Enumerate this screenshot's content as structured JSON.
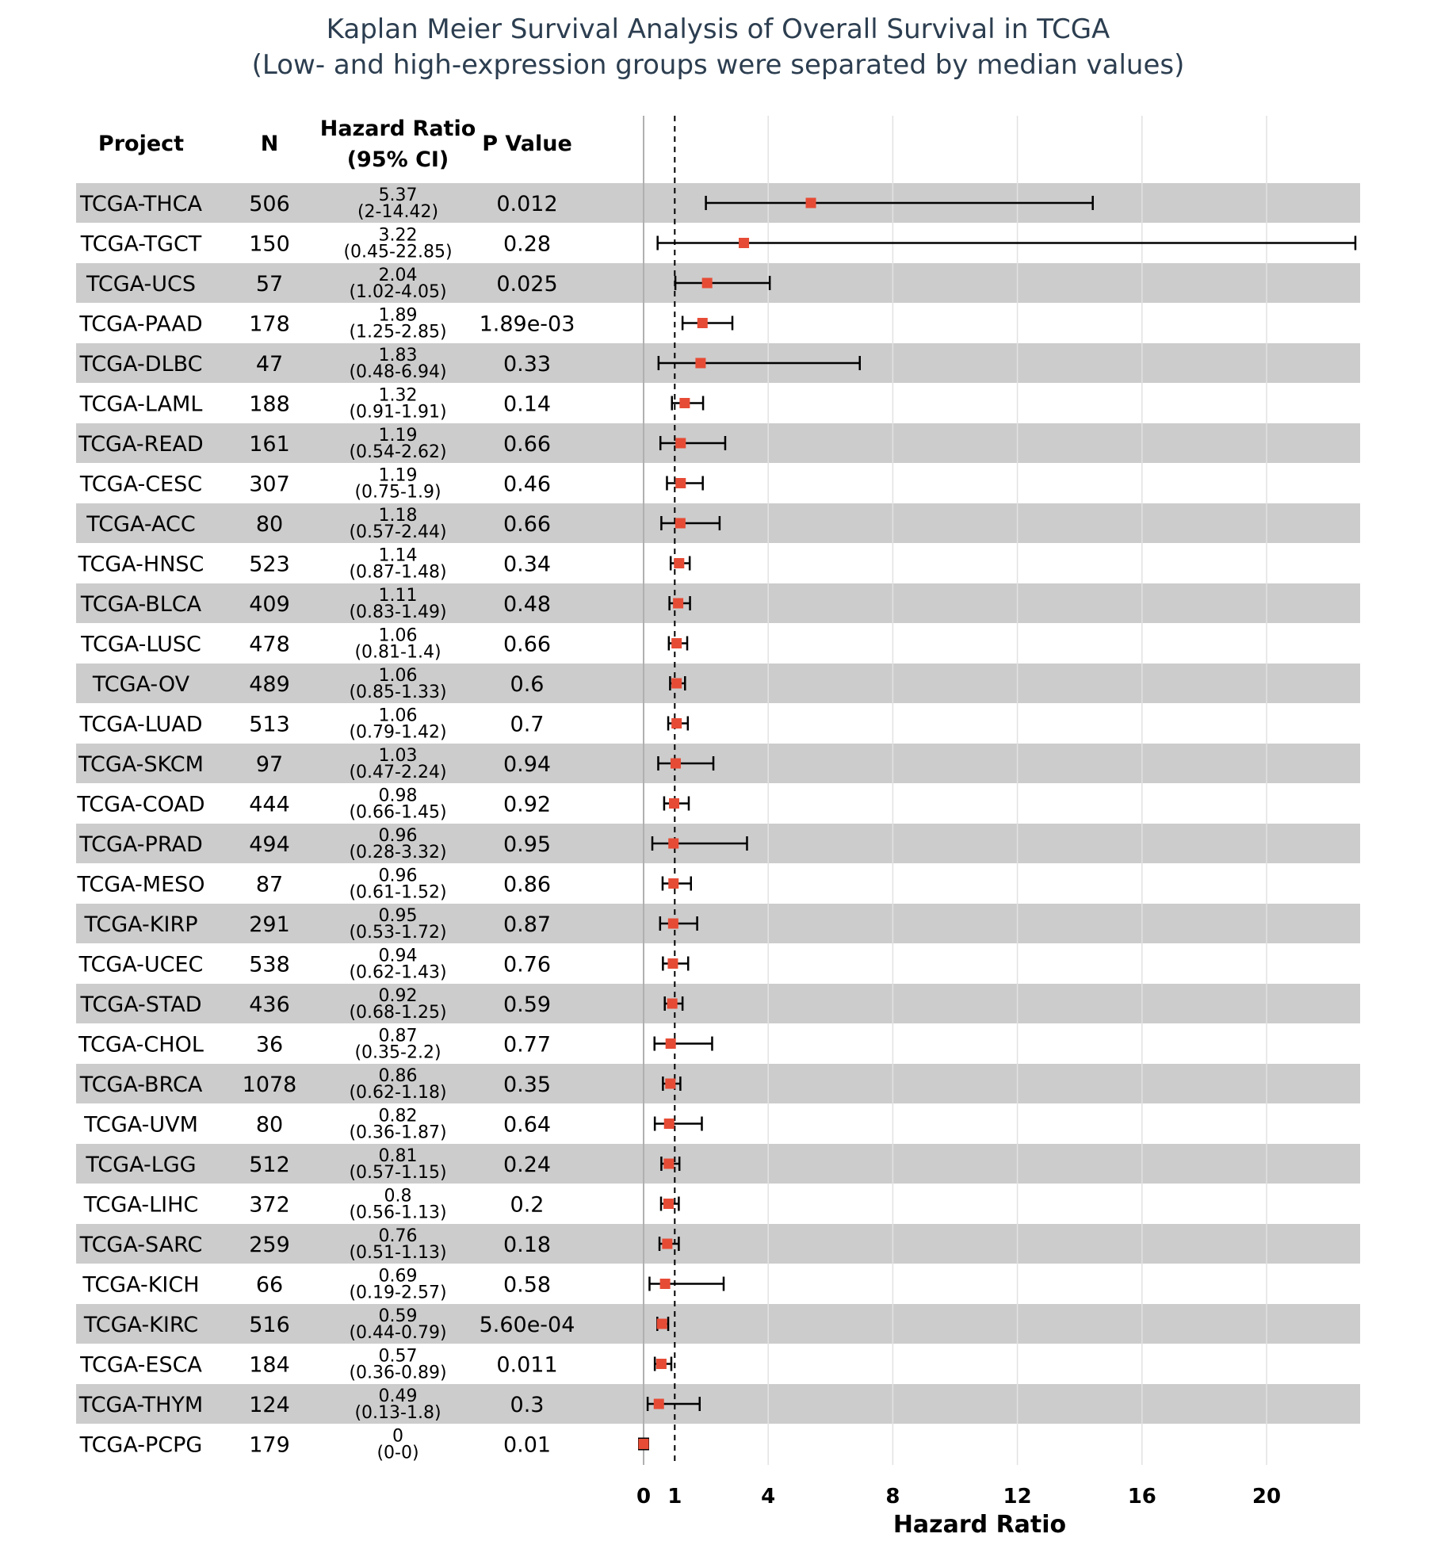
{
  "title_line1": "Kaplan Meier Survival Analysis of Overall Survival in TCGA",
  "title_line2": "(Low- and high-expression groups were separated by median values)",
  "headers": {
    "project": "Project",
    "n": "N",
    "hr_line1": "Hazard Ratio",
    "hr_line2": "(95% CI)",
    "p": "P Value"
  },
  "colors": {
    "point": "#e64b35",
    "stripe": "#cccccc",
    "title": "#2c3e50"
  },
  "chart_data": {
    "type": "forest",
    "title": "Kaplan Meier Survival Analysis of Overall Survival in TCGA",
    "subtitle": "(Low- and high-expression groups were separated by median values)",
    "xlabel": "Hazard Ratio",
    "xlim": [
      -0.5,
      23.2
    ],
    "xticks": [
      0,
      1,
      4,
      8,
      12,
      16,
      20
    ],
    "reference_line": 1,
    "grid": true,
    "rows": [
      {
        "project": "TCGA-THCA",
        "n": "506",
        "hr": 5.37,
        "lo": 2,
        "hi": 14.42,
        "hr_text": "5.37",
        "ci_text": "(2-14.42)",
        "p": "0.012"
      },
      {
        "project": "TCGA-TGCT",
        "n": "150",
        "hr": 3.22,
        "lo": 0.45,
        "hi": 22.85,
        "hr_text": "3.22",
        "ci_text": "(0.45-22.85)",
        "p": "0.28"
      },
      {
        "project": "TCGA-UCS",
        "n": "57",
        "hr": 2.04,
        "lo": 1.02,
        "hi": 4.05,
        "hr_text": "2.04",
        "ci_text": "(1.02-4.05)",
        "p": "0.025"
      },
      {
        "project": "TCGA-PAAD",
        "n": "178",
        "hr": 1.89,
        "lo": 1.25,
        "hi": 2.85,
        "hr_text": "1.89",
        "ci_text": "(1.25-2.85)",
        "p": "1.89e-03"
      },
      {
        "project": "TCGA-DLBC",
        "n": "47",
        "hr": 1.83,
        "lo": 0.48,
        "hi": 6.94,
        "hr_text": "1.83",
        "ci_text": "(0.48-6.94)",
        "p": "0.33"
      },
      {
        "project": "TCGA-LAML",
        "n": "188",
        "hr": 1.32,
        "lo": 0.91,
        "hi": 1.91,
        "hr_text": "1.32",
        "ci_text": "(0.91-1.91)",
        "p": "0.14"
      },
      {
        "project": "TCGA-READ",
        "n": "161",
        "hr": 1.19,
        "lo": 0.54,
        "hi": 2.62,
        "hr_text": "1.19",
        "ci_text": "(0.54-2.62)",
        "p": "0.66"
      },
      {
        "project": "TCGA-CESC",
        "n": "307",
        "hr": 1.19,
        "lo": 0.75,
        "hi": 1.9,
        "hr_text": "1.19",
        "ci_text": "(0.75-1.9)",
        "p": "0.46"
      },
      {
        "project": "TCGA-ACC",
        "n": "80",
        "hr": 1.18,
        "lo": 0.57,
        "hi": 2.44,
        "hr_text": "1.18",
        "ci_text": "(0.57-2.44)",
        "p": "0.66"
      },
      {
        "project": "TCGA-HNSC",
        "n": "523",
        "hr": 1.14,
        "lo": 0.87,
        "hi": 1.48,
        "hr_text": "1.14",
        "ci_text": "(0.87-1.48)",
        "p": "0.34"
      },
      {
        "project": "TCGA-BLCA",
        "n": "409",
        "hr": 1.11,
        "lo": 0.83,
        "hi": 1.49,
        "hr_text": "1.11",
        "ci_text": "(0.83-1.49)",
        "p": "0.48"
      },
      {
        "project": "TCGA-LUSC",
        "n": "478",
        "hr": 1.06,
        "lo": 0.81,
        "hi": 1.4,
        "hr_text": "1.06",
        "ci_text": "(0.81-1.4)",
        "p": "0.66"
      },
      {
        "project": "TCGA-OV",
        "n": "489",
        "hr": 1.06,
        "lo": 0.85,
        "hi": 1.33,
        "hr_text": "1.06",
        "ci_text": "(0.85-1.33)",
        "p": "0.6"
      },
      {
        "project": "TCGA-LUAD",
        "n": "513",
        "hr": 1.06,
        "lo": 0.79,
        "hi": 1.42,
        "hr_text": "1.06",
        "ci_text": "(0.79-1.42)",
        "p": "0.7"
      },
      {
        "project": "TCGA-SKCM",
        "n": "97",
        "hr": 1.03,
        "lo": 0.47,
        "hi": 2.24,
        "hr_text": "1.03",
        "ci_text": "(0.47-2.24)",
        "p": "0.94"
      },
      {
        "project": "TCGA-COAD",
        "n": "444",
        "hr": 0.98,
        "lo": 0.66,
        "hi": 1.45,
        "hr_text": "0.98",
        "ci_text": "(0.66-1.45)",
        "p": "0.92"
      },
      {
        "project": "TCGA-PRAD",
        "n": "494",
        "hr": 0.96,
        "lo": 0.28,
        "hi": 3.32,
        "hr_text": "0.96",
        "ci_text": "(0.28-3.32)",
        "p": "0.95"
      },
      {
        "project": "TCGA-MESO",
        "n": "87",
        "hr": 0.96,
        "lo": 0.61,
        "hi": 1.52,
        "hr_text": "0.96",
        "ci_text": "(0.61-1.52)",
        "p": "0.86"
      },
      {
        "project": "TCGA-KIRP",
        "n": "291",
        "hr": 0.95,
        "lo": 0.53,
        "hi": 1.72,
        "hr_text": "0.95",
        "ci_text": "(0.53-1.72)",
        "p": "0.87"
      },
      {
        "project": "TCGA-UCEC",
        "n": "538",
        "hr": 0.94,
        "lo": 0.62,
        "hi": 1.43,
        "hr_text": "0.94",
        "ci_text": "(0.62-1.43)",
        "p": "0.76"
      },
      {
        "project": "TCGA-STAD",
        "n": "436",
        "hr": 0.92,
        "lo": 0.68,
        "hi": 1.25,
        "hr_text": "0.92",
        "ci_text": "(0.68-1.25)",
        "p": "0.59"
      },
      {
        "project": "TCGA-CHOL",
        "n": "36",
        "hr": 0.87,
        "lo": 0.35,
        "hi": 2.2,
        "hr_text": "0.87",
        "ci_text": "(0.35-2.2)",
        "p": "0.77"
      },
      {
        "project": "TCGA-BRCA",
        "n": "1078",
        "hr": 0.86,
        "lo": 0.62,
        "hi": 1.18,
        "hr_text": "0.86",
        "ci_text": "(0.62-1.18)",
        "p": "0.35"
      },
      {
        "project": "TCGA-UVM",
        "n": "80",
        "hr": 0.82,
        "lo": 0.36,
        "hi": 1.87,
        "hr_text": "0.82",
        "ci_text": "(0.36-1.87)",
        "p": "0.64"
      },
      {
        "project": "TCGA-LGG",
        "n": "512",
        "hr": 0.81,
        "lo": 0.57,
        "hi": 1.15,
        "hr_text": "0.81",
        "ci_text": "(0.57-1.15)",
        "p": "0.24"
      },
      {
        "project": "TCGA-LIHC",
        "n": "372",
        "hr": 0.8,
        "lo": 0.56,
        "hi": 1.13,
        "hr_text": "0.8",
        "ci_text": "(0.56-1.13)",
        "p": "0.2"
      },
      {
        "project": "TCGA-SARC",
        "n": "259",
        "hr": 0.76,
        "lo": 0.51,
        "hi": 1.13,
        "hr_text": "0.76",
        "ci_text": "(0.51-1.13)",
        "p": "0.18"
      },
      {
        "project": "TCGA-KICH",
        "n": "66",
        "hr": 0.69,
        "lo": 0.19,
        "hi": 2.57,
        "hr_text": "0.69",
        "ci_text": "(0.19-2.57)",
        "p": "0.58"
      },
      {
        "project": "TCGA-KIRC",
        "n": "516",
        "hr": 0.59,
        "lo": 0.44,
        "hi": 0.79,
        "hr_text": "0.59",
        "ci_text": "(0.44-0.79)",
        "p": "5.60e-04"
      },
      {
        "project": "TCGA-ESCA",
        "n": "184",
        "hr": 0.57,
        "lo": 0.36,
        "hi": 0.89,
        "hr_text": "0.57",
        "ci_text": "(0.36-0.89)",
        "p": "0.011"
      },
      {
        "project": "TCGA-THYM",
        "n": "124",
        "hr": 0.49,
        "lo": 0.13,
        "hi": 1.8,
        "hr_text": "0.49",
        "ci_text": "(0.13-1.8)",
        "p": "0.3"
      },
      {
        "project": "TCGA-PCPG",
        "n": "179",
        "hr": 0,
        "lo": 0,
        "hi": 0,
        "hr_text": "0",
        "ci_text": "(0-0)",
        "p": "0.01"
      }
    ]
  }
}
